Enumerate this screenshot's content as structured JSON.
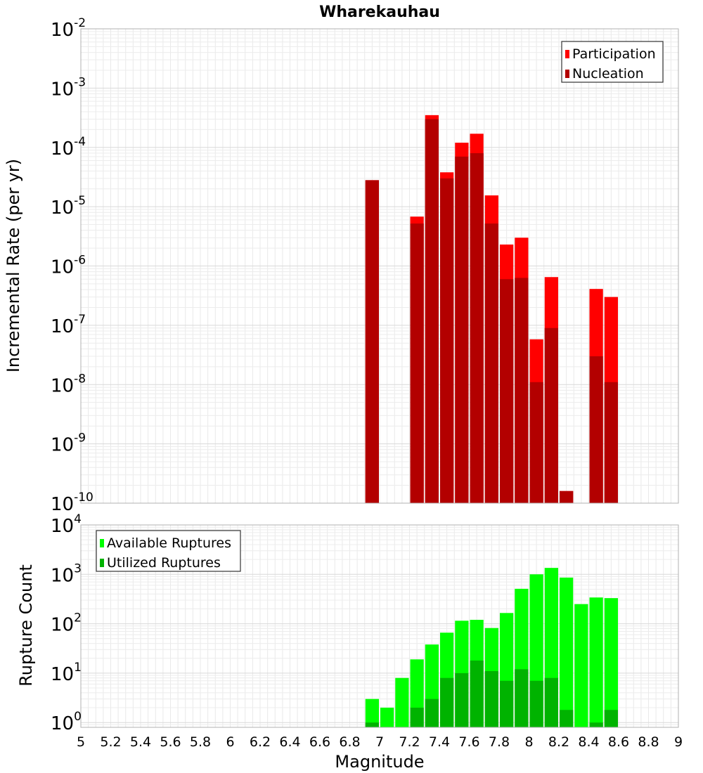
{
  "chart_data": [
    {
      "type": "bar",
      "title": "Wharekauhau",
      "xlabel": "",
      "ylabel": "Incremental Rate (per yr)",
      "yscale": "log",
      "ylim": [
        1e-10,
        0.01
      ],
      "xlim": [
        5,
        9
      ],
      "bar_width": 0.1,
      "grid": true,
      "legend_position": "top-right",
      "ytick_labels": [
        {
          "exp": -10,
          "base": "10",
          "power": "-10"
        },
        {
          "exp": -9,
          "base": "10",
          "power": "-9"
        },
        {
          "exp": -8,
          "base": "10",
          "power": "-8"
        },
        {
          "exp": -7,
          "base": "10",
          "power": "-7"
        },
        {
          "exp": -6,
          "base": "10",
          "power": "-6"
        },
        {
          "exp": -5,
          "base": "10",
          "power": "-5"
        },
        {
          "exp": -4,
          "base": "10",
          "power": "-4"
        },
        {
          "exp": -3,
          "base": "10",
          "power": "-3"
        },
        {
          "exp": -2,
          "base": "10",
          "power": "-2"
        }
      ],
      "series": [
        {
          "name": "Participation",
          "color": "#ff0000",
          "points": [
            {
              "x": 6.95,
              "y": 2.8e-05
            },
            {
              "x": 7.25,
              "y": 6.8e-06
            },
            {
              "x": 7.35,
              "y": 0.00035
            },
            {
              "x": 7.45,
              "y": 3.8e-05
            },
            {
              "x": 7.55,
              "y": 0.00012
            },
            {
              "x": 7.65,
              "y": 0.00017
            },
            {
              "x": 7.75,
              "y": 1.55e-05
            },
            {
              "x": 7.85,
              "y": 2.3e-06
            },
            {
              "x": 7.95,
              "y": 3e-06
            },
            {
              "x": 8.05,
              "y": 5.8e-08
            },
            {
              "x": 8.15,
              "y": 6.5e-07
            },
            {
              "x": 8.25,
              "y": 1.6e-10
            },
            {
              "x": 8.45,
              "y": 4.1e-07
            },
            {
              "x": 8.55,
              "y": 3e-07
            }
          ]
        },
        {
          "name": "Nucleation",
          "color": "#b30000",
          "points": [
            {
              "x": 6.95,
              "y": 2.8e-05
            },
            {
              "x": 7.25,
              "y": 5.2e-06
            },
            {
              "x": 7.35,
              "y": 0.0003
            },
            {
              "x": 7.45,
              "y": 3e-05
            },
            {
              "x": 7.55,
              "y": 7e-05
            },
            {
              "x": 7.65,
              "y": 8e-05
            },
            {
              "x": 7.75,
              "y": 5.2e-06
            },
            {
              "x": 7.85,
              "y": 6e-07
            },
            {
              "x": 7.95,
              "y": 6.3e-07
            },
            {
              "x": 8.05,
              "y": 1.1e-08
            },
            {
              "x": 8.15,
              "y": 9e-08
            },
            {
              "x": 8.25,
              "y": 1.6e-10
            },
            {
              "x": 8.45,
              "y": 3e-08
            },
            {
              "x": 8.55,
              "y": 1.1e-08
            }
          ]
        }
      ]
    },
    {
      "type": "bar",
      "title": "",
      "xlabel": "Magnitude",
      "ylabel": "Rupture Count",
      "yscale": "log",
      "ylim": [
        0.8,
        10000
      ],
      "xlim": [
        5,
        9
      ],
      "bar_width": 0.1,
      "grid": true,
      "legend_position": "top-left",
      "xticks": [
        "5",
        "5.2",
        "5.4",
        "5.6",
        "5.8",
        "6",
        "6.2",
        "6.4",
        "6.6",
        "6.8",
        "7",
        "7.2",
        "7.4",
        "7.6",
        "7.8",
        "8",
        "8.2",
        "8.4",
        "8.6",
        "8.8",
        "9"
      ],
      "ytick_labels": [
        {
          "exp": 0,
          "base": "10",
          "power": "0"
        },
        {
          "exp": 1,
          "base": "10",
          "power": "1"
        },
        {
          "exp": 2,
          "base": "10",
          "power": "2"
        },
        {
          "exp": 3,
          "base": "10",
          "power": "3"
        },
        {
          "exp": 4,
          "base": "10",
          "power": "4"
        }
      ],
      "series": [
        {
          "name": "Available Ruptures",
          "color": "#00ff00",
          "points": [
            {
              "x": 6.95,
              "y": 3
            },
            {
              "x": 7.05,
              "y": 2
            },
            {
              "x": 7.15,
              "y": 8
            },
            {
              "x": 7.25,
              "y": 19
            },
            {
              "x": 7.35,
              "y": 38
            },
            {
              "x": 7.45,
              "y": 66
            },
            {
              "x": 7.55,
              "y": 115
            },
            {
              "x": 7.65,
              "y": 120
            },
            {
              "x": 7.75,
              "y": 82
            },
            {
              "x": 7.85,
              "y": 165
            },
            {
              "x": 7.95,
              "y": 510
            },
            {
              "x": 8.05,
              "y": 1000
            },
            {
              "x": 8.15,
              "y": 1350
            },
            {
              "x": 8.25,
              "y": 860
            },
            {
              "x": 8.35,
              "y": 250
            },
            {
              "x": 8.45,
              "y": 340
            },
            {
              "x": 8.55,
              "y": 330
            }
          ]
        },
        {
          "name": "Utilized Ruptures",
          "color": "#00b300",
          "points": [
            {
              "x": 6.95,
              "y": 1
            },
            {
              "x": 7.25,
              "y": 2
            },
            {
              "x": 7.35,
              "y": 3
            },
            {
              "x": 7.45,
              "y": 8
            },
            {
              "x": 7.55,
              "y": 10
            },
            {
              "x": 7.65,
              "y": 18
            },
            {
              "x": 7.75,
              "y": 11
            },
            {
              "x": 7.85,
              "y": 7
            },
            {
              "x": 7.95,
              "y": 12
            },
            {
              "x": 8.05,
              "y": 7
            },
            {
              "x": 8.15,
              "y": 8
            },
            {
              "x": 8.25,
              "y": 1.8
            },
            {
              "x": 8.45,
              "y": 1
            },
            {
              "x": 8.55,
              "y": 1.8
            }
          ]
        }
      ]
    }
  ]
}
